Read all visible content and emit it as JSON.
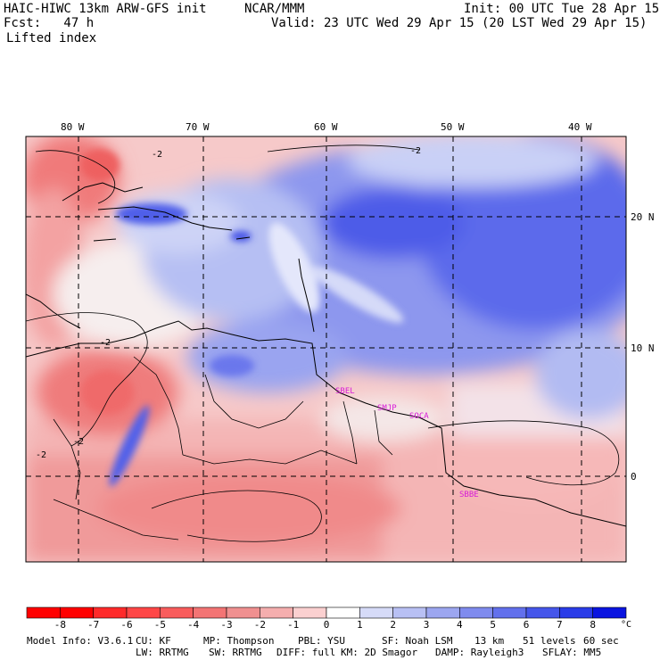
{
  "header": {
    "model": "HAIC-HIWC 13km ARW-GFS init",
    "org": "NCAR/MMM",
    "init": "Init: 00 UTC Tue 28 Apr 15",
    "fcst": "Fcst:   47 h",
    "valid": "Valid: 23 UTC Wed 29 Apr 15 (20 LST Wed 29 Apr 15)",
    "field": "Lifted index"
  },
  "map": {
    "lon_labels": [
      "80 W",
      "70 W",
      "60 W",
      "50 W",
      "40 W"
    ],
    "lat_labels": [
      "20 N",
      "10 N",
      "0"
    ],
    "contour_label": "-2",
    "stations": [
      "SBEL",
      "SMJP",
      "SOCA",
      "SBBE"
    ],
    "station_color": "#d81ad8"
  },
  "colorbar": {
    "ticks": [
      "-8",
      "-7",
      "-6",
      "-5",
      "-4",
      "-3",
      "-2",
      "-1",
      "0",
      "1",
      "2",
      "3",
      "4",
      "5",
      "6",
      "7",
      "8"
    ],
    "unit": "°C",
    "colors": [
      "#ff0000",
      "#ff2a2a",
      "#ff4646",
      "#f95c5c",
      "#f37474",
      "#f09090",
      "#f5aeae",
      "#fbd0d0",
      "#ffffff",
      "#d6dbf8",
      "#b8c0f4",
      "#9ca6f0",
      "#7f8bee",
      "#6270ec",
      "#4556ea",
      "#2a3ce8",
      "#0a14e0"
    ]
  },
  "footer": {
    "line1": [
      "Model Info: V3.6.1",
      "CU: KF",
      "MP: Thompson",
      "PBL: YSU",
      "SF: Noah LSM",
      "13 km",
      "51 levels",
      "60 sec"
    ],
    "line2": [
      "LW: RRTMG",
      "SW: RRTMG",
      "DIFF: full",
      "KM: 2D Smagor",
      "DAMP: Rayleigh3",
      "SFLAY: MM5"
    ]
  }
}
